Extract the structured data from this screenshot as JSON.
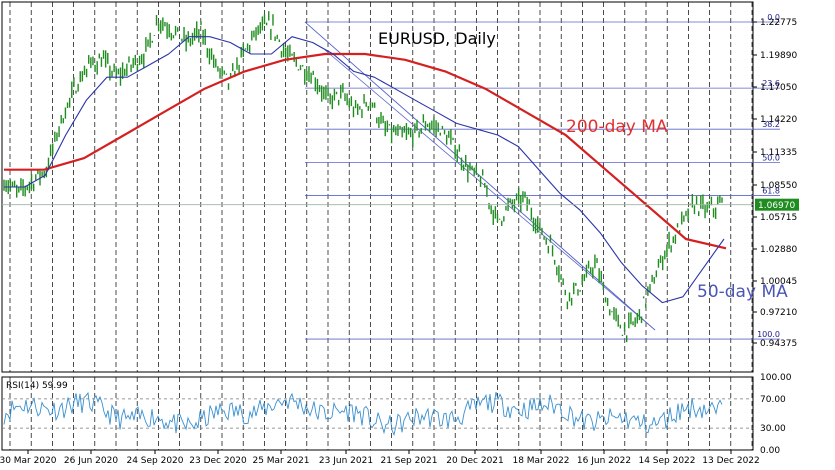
{
  "chart_data": [
    {
      "type": "line",
      "title": "EURUSD, Daily",
      "ylim": [
        0.925,
        1.245
      ],
      "y_ticks": [
        "1.22775",
        "1.19890",
        "1.17050",
        "1.14220",
        "1.11335",
        "1.08550",
        "1.05715",
        "1.02880",
        "1.00045",
        "0.97210",
        "0.94375"
      ],
      "x_ticks": [
        "30 Mar 2020",
        "26 Jun 2020",
        "24 Sep 2020",
        "23 Dec 2020",
        "25 Mar 2021",
        "23 Jun 2021",
        "21 Sep 2021",
        "20 Dec 2021",
        "18 Mar 2022",
        "16 Jun 2022",
        "14 Sep 2022",
        "13 Dec 2022"
      ],
      "current_price": "1.06970",
      "price_path": [
        1.09,
        1.08,
        1.09,
        1.1,
        1.14,
        1.17,
        1.19,
        1.195,
        1.18,
        1.19,
        1.2,
        1.23,
        1.22,
        1.21,
        1.22,
        1.19,
        1.175,
        1.2,
        1.22,
        1.225,
        1.2,
        1.19,
        1.18,
        1.16,
        1.165,
        1.15,
        1.16,
        1.135,
        1.13,
        1.13,
        1.14,
        1.135,
        1.12,
        1.1,
        1.09,
        1.055,
        1.07,
        1.075,
        1.05,
        1.03,
        0.99,
        1.0,
        1.02,
        0.98,
        0.96,
        0.97,
        1.0,
        1.03,
        1.05,
        1.07,
        1.065,
        1.07
      ],
      "ma50_path": [
        1.085,
        1.085,
        1.095,
        1.13,
        1.16,
        1.18,
        1.18,
        1.19,
        1.2,
        1.215,
        1.215,
        1.21,
        1.2,
        1.2,
        1.215,
        1.21,
        1.2,
        1.185,
        1.18,
        1.17,
        1.16,
        1.15,
        1.14,
        1.135,
        1.13,
        1.12,
        1.1,
        1.08,
        1.065,
        1.045,
        1.02,
        1.0,
        0.985,
        0.99,
        1.015,
        1.04
      ],
      "ma200_path": [
        1.1,
        1.1,
        1.11,
        1.13,
        1.15,
        1.17,
        1.185,
        1.195,
        1.2,
        1.2,
        1.195,
        1.185,
        1.17,
        1.15,
        1.13,
        1.1,
        1.07,
        1.04,
        1.032
      ],
      "fib_levels": [
        {
          "label": "0.0",
          "value": 1.2277
        },
        {
          "label": "23.6",
          "value": 1.1705
        },
        {
          "label": "38.2",
          "value": 1.135
        },
        {
          "label": "50.0",
          "value": 1.1063
        },
        {
          "label": "61.8",
          "value": 1.0777
        },
        {
          "label": "100.0",
          "value": 0.9535
        }
      ],
      "series": [
        {
          "name": "50-day MA",
          "color": "#2b35a8"
        },
        {
          "name": "200-day MA",
          "color": "#d42020"
        }
      ],
      "annotations": [
        "200-day MA",
        "50-day MA"
      ],
      "grid": true
    },
    {
      "type": "line",
      "title": "RSI(14) 59.99",
      "ylim": [
        0,
        100
      ],
      "y_ticks": [
        "100.00",
        "70.00",
        "30.00",
        "0.00"
      ],
      "reference_levels": [
        70,
        30
      ]
    }
  ],
  "colors": {
    "price": "#1f8c1f",
    "ma50": "#2b35a8",
    "ma200": "#d42020",
    "fib": "#5a66c9",
    "grid": "#000000",
    "rsi": "#3a90d0"
  }
}
